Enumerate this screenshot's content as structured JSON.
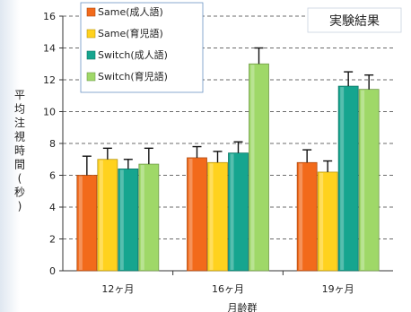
{
  "chart_data": {
    "type": "bar",
    "title": "実験結果",
    "xlabel": "月齢群",
    "ylabel": "平均注視時間(秒)",
    "ylim": [
      0,
      16
    ],
    "yticks": [
      0,
      2,
      4,
      6,
      8,
      10,
      12,
      14,
      16
    ],
    "grid": "dashed-horizontal",
    "legend_position": "top-left",
    "categories": [
      "12ヶ月",
      "16ヶ月",
      "19ヶ月"
    ],
    "series": [
      {
        "name": "Same(成人語)",
        "color": "#f26a1b",
        "values": [
          6.0,
          7.1,
          6.8
        ],
        "errors": [
          1.2,
          0.7,
          0.8
        ]
      },
      {
        "name": "Same(育児語)",
        "color": "#ffd21e",
        "values": [
          7.0,
          6.8,
          6.2
        ],
        "errors": [
          0.7,
          0.7,
          0.7
        ]
      },
      {
        "name": "Switch(成人語)",
        "color": "#16a58f",
        "values": [
          6.4,
          7.4,
          11.6
        ],
        "errors": [
          0.6,
          0.7,
          0.9
        ]
      },
      {
        "name": "Switch(育児語)",
        "color": "#9fd868",
        "values": [
          6.7,
          13.0,
          11.4
        ],
        "errors": [
          1.0,
          1.0,
          0.9
        ]
      }
    ]
  }
}
